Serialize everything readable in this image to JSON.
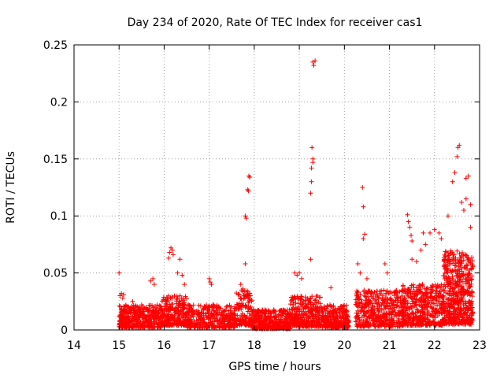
{
  "chart_data": {
    "type": "scatter",
    "title": "Day 234 of 2020, Rate Of TEC Index for receiver cas1",
    "xlabel": "GPS time / hours",
    "ylabel": "ROTI / TECUs",
    "xlim": [
      14,
      23
    ],
    "ylim": [
      0,
      0.25
    ],
    "xticks": [
      "14",
      "15",
      "16",
      "17",
      "18",
      "19",
      "20",
      "21",
      "22",
      "23"
    ],
    "yticks": [
      "0",
      "0.05",
      "0.1",
      "0.15",
      "0.2",
      "0.25"
    ],
    "grid": true,
    "marker": "+",
    "color": "#ff0000",
    "series": [
      {
        "name": "cas1",
        "points": [
          [
            15.0,
            0.05
          ],
          [
            15.02,
            0.03
          ],
          [
            15.05,
            0.032
          ],
          [
            15.08,
            0.028
          ],
          [
            15.1,
            0.031
          ],
          [
            15.3,
            0.025
          ],
          [
            15.5,
            0.022
          ],
          [
            15.7,
            0.043
          ],
          [
            15.75,
            0.045
          ],
          [
            15.78,
            0.04
          ],
          [
            16.1,
            0.063
          ],
          [
            16.12,
            0.068
          ],
          [
            16.15,
            0.072
          ],
          [
            16.18,
            0.07
          ],
          [
            16.2,
            0.066
          ],
          [
            16.3,
            0.05
          ],
          [
            16.35,
            0.062
          ],
          [
            16.4,
            0.048
          ],
          [
            16.45,
            0.04
          ],
          [
            17.0,
            0.045
          ],
          [
            17.02,
            0.042
          ],
          [
            17.05,
            0.04
          ],
          [
            17.7,
            0.04
          ],
          [
            17.75,
            0.036
          ],
          [
            17.8,
            0.058
          ],
          [
            17.8,
            0.1
          ],
          [
            17.82,
            0.098
          ],
          [
            17.85,
            0.123
          ],
          [
            17.87,
            0.122
          ],
          [
            17.88,
            0.135
          ],
          [
            17.9,
            0.134
          ],
          [
            18.9,
            0.05
          ],
          [
            18.95,
            0.048
          ],
          [
            19.0,
            0.05
          ],
          [
            19.05,
            0.045
          ],
          [
            19.25,
            0.062
          ],
          [
            19.25,
            0.12
          ],
          [
            19.27,
            0.13
          ],
          [
            19.27,
            0.142
          ],
          [
            19.3,
            0.147
          ],
          [
            19.28,
            0.16
          ],
          [
            19.3,
            0.15
          ],
          [
            19.3,
            0.235
          ],
          [
            19.32,
            0.232
          ],
          [
            19.35,
            0.236
          ],
          [
            19.7,
            0.037
          ],
          [
            20.3,
            0.058
          ],
          [
            20.35,
            0.05
          ],
          [
            20.4,
            0.125
          ],
          [
            20.42,
            0.108
          ],
          [
            20.42,
            0.08
          ],
          [
            20.45,
            0.084
          ],
          [
            20.5,
            0.045
          ],
          [
            20.9,
            0.058
          ],
          [
            20.95,
            0.05
          ],
          [
            21.4,
            0.101
          ],
          [
            21.42,
            0.095
          ],
          [
            21.45,
            0.09
          ],
          [
            21.48,
            0.083
          ],
          [
            21.5,
            0.078
          ],
          [
            21.5,
            0.062
          ],
          [
            21.6,
            0.06
          ],
          [
            21.7,
            0.07
          ],
          [
            21.75,
            0.085
          ],
          [
            21.8,
            0.075
          ],
          [
            21.9,
            0.085
          ],
          [
            22.0,
            0.088
          ],
          [
            22.1,
            0.085
          ],
          [
            22.15,
            0.08
          ],
          [
            22.3,
            0.1
          ],
          [
            22.4,
            0.13
          ],
          [
            22.45,
            0.138
          ],
          [
            22.5,
            0.152
          ],
          [
            22.52,
            0.16
          ],
          [
            22.55,
            0.162
          ],
          [
            22.6,
            0.112
          ],
          [
            22.65,
            0.105
          ],
          [
            22.7,
            0.133
          ],
          [
            22.75,
            0.135
          ],
          [
            22.7,
            0.115
          ],
          [
            22.8,
            0.11
          ],
          [
            22.8,
            0.09
          ]
        ],
        "bands": [
          {
            "from": 15.0,
            "to": 15.95,
            "low": 0.002,
            "high": 0.022,
            "count": 420
          },
          {
            "from": 15.95,
            "to": 16.5,
            "low": 0.004,
            "high": 0.03,
            "count": 260
          },
          {
            "from": 16.5,
            "to": 17.6,
            "low": 0.002,
            "high": 0.022,
            "count": 380
          },
          {
            "from": 17.6,
            "to": 17.95,
            "low": 0.004,
            "high": 0.035,
            "count": 140
          },
          {
            "from": 17.95,
            "to": 18.8,
            "low": 0.001,
            "high": 0.018,
            "count": 360
          },
          {
            "from": 18.8,
            "to": 19.5,
            "low": 0.003,
            "high": 0.03,
            "count": 320
          },
          {
            "from": 19.5,
            "to": 20.1,
            "low": 0.002,
            "high": 0.022,
            "count": 300
          },
          {
            "from": 20.25,
            "to": 21.3,
            "low": 0.003,
            "high": 0.035,
            "count": 460
          },
          {
            "from": 21.3,
            "to": 22.2,
            "low": 0.004,
            "high": 0.04,
            "count": 460
          },
          {
            "from": 22.2,
            "to": 22.85,
            "low": 0.005,
            "high": 0.07,
            "count": 560
          }
        ]
      }
    ]
  }
}
